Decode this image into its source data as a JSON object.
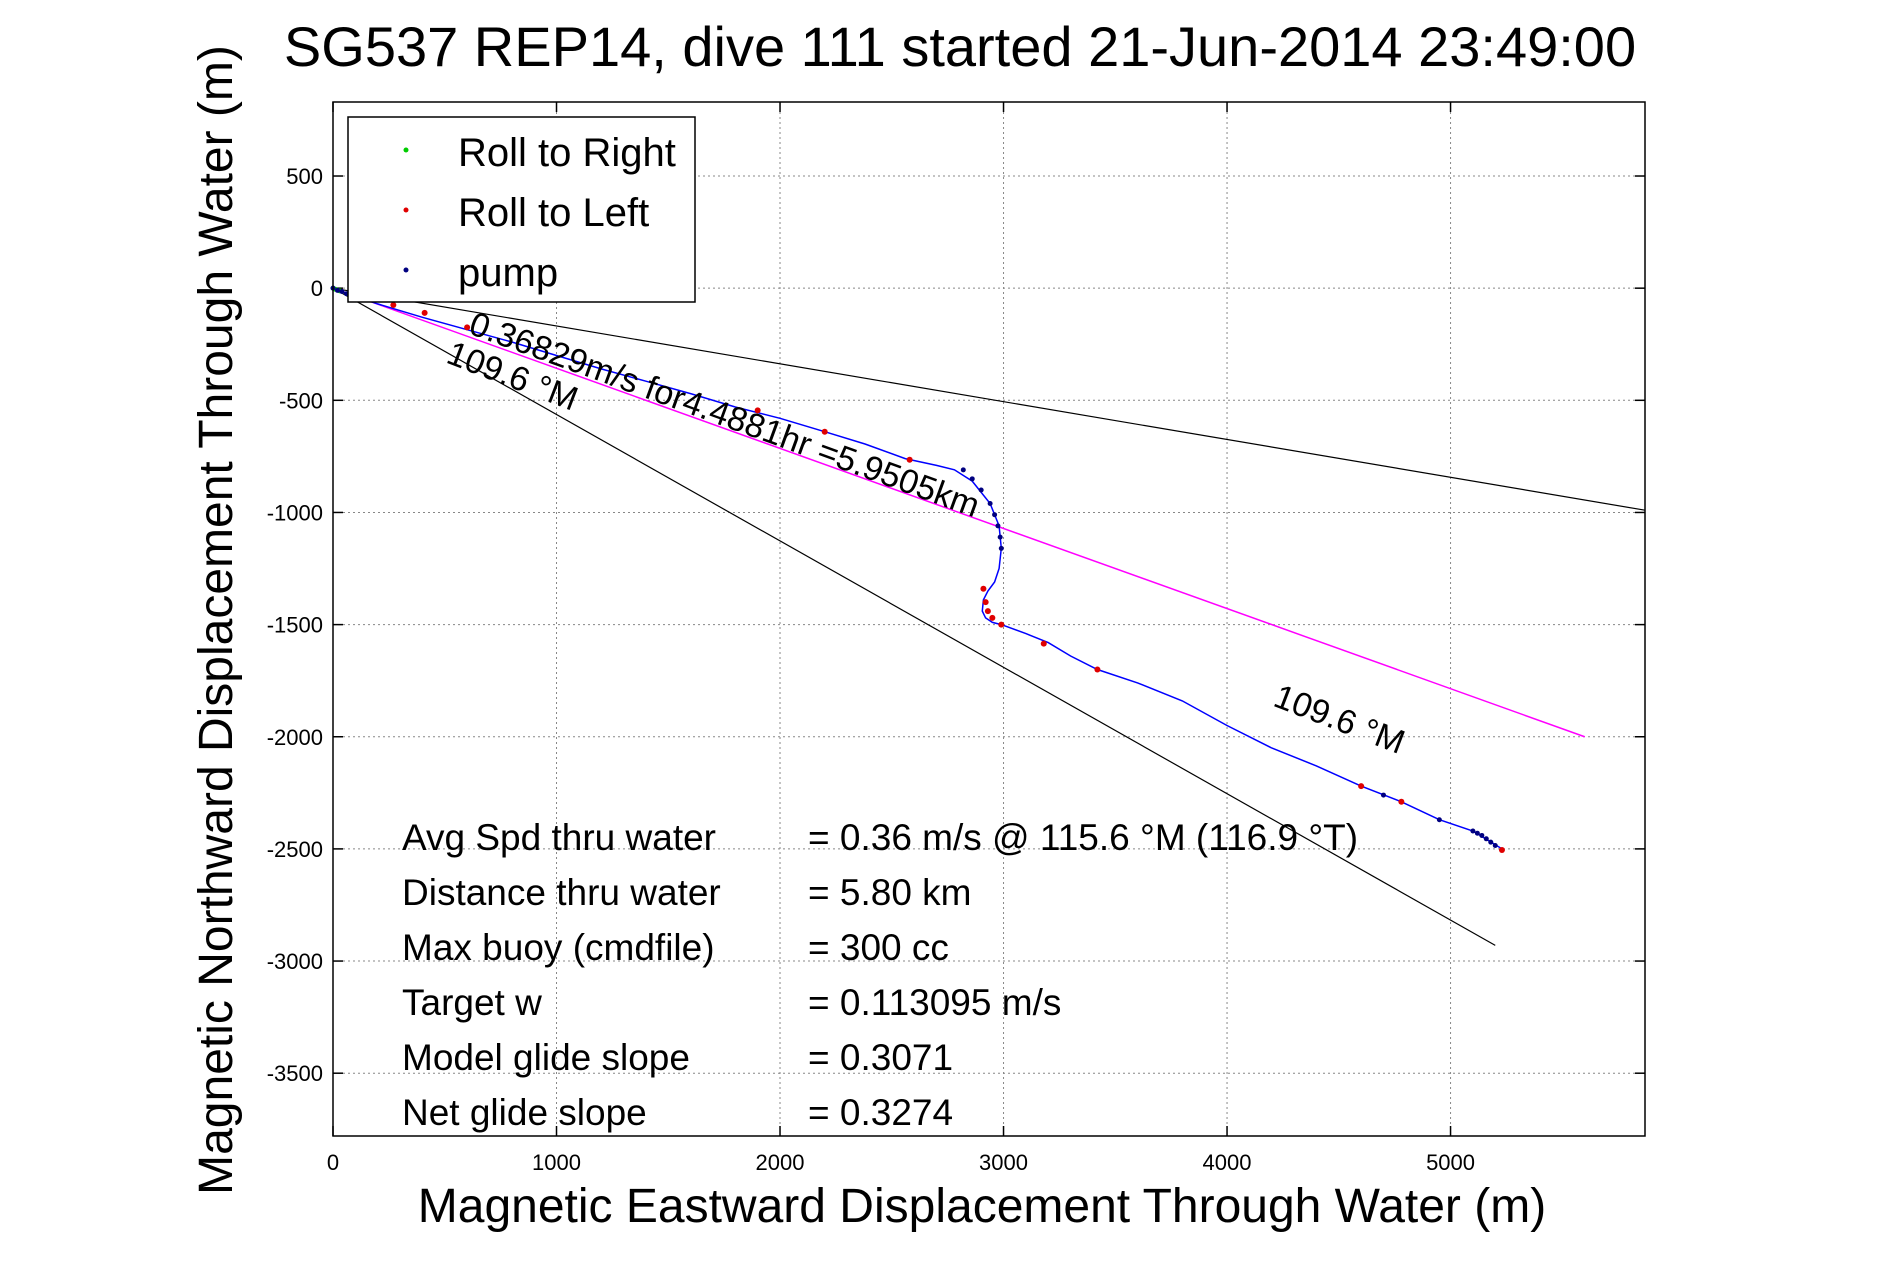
{
  "chart_data": {
    "type": "scatter",
    "title": "SG537 REP14, dive 111 started 21-Jun-2014 23:49:00",
    "xlabel": "Magnetic Eastward Displacement Through Water (m)",
    "ylabel": "Magnetic Northward Displacement Through Water (m)",
    "xlim": [
      0,
      5870
    ],
    "ylim": [
      -3780,
      830
    ],
    "xticks": [
      0,
      1000,
      2000,
      3000,
      4000,
      5000
    ],
    "yticks": [
      500,
      0,
      -500,
      -1000,
      -1500,
      -2000,
      -2500,
      -3000,
      -3500
    ],
    "grid": true,
    "legend_position": "top-left",
    "legend": [
      {
        "label": "Roll to Right",
        "color": "#00cc00"
      },
      {
        "label": "Roll to Left",
        "color": "#e00000"
      },
      {
        "label": "pump",
        "color": "#000080"
      }
    ],
    "colors": {
      "track": "#0000ff",
      "heading_line": "#ff00ff",
      "bounds": "#000000",
      "grid": "#888888"
    },
    "track": {
      "name": "",
      "x": [
        0,
        80,
        200,
        400,
        600,
        800,
        1000,
        1200,
        1400,
        1600,
        1800,
        2000,
        2200,
        2380,
        2560,
        2700,
        2780,
        2860,
        2940,
        2980,
        2990,
        2980,
        2960,
        2930,
        2910,
        2905,
        2920,
        2950,
        2990,
        3100,
        3200,
        3300,
        3420,
        3600,
        3800,
        4000,
        4200,
        4400,
        4600,
        4780,
        4950,
        5100,
        5230
      ],
      "y": [
        0,
        -30,
        -70,
        -130,
        -185,
        -240,
        -300,
        -360,
        -415,
        -470,
        -530,
        -580,
        -640,
        -695,
        -760,
        -790,
        -810,
        -860,
        -960,
        -1060,
        -1160,
        -1250,
        -1310,
        -1350,
        -1390,
        -1440,
        -1470,
        -1490,
        -1500,
        -1540,
        -1580,
        -1640,
        -1700,
        -1760,
        -1840,
        -1950,
        -2050,
        -2130,
        -2220,
        -2290,
        -2370,
        -2420,
        -2500
      ]
    },
    "heading_line": {
      "label": "0.36829m/s for4.4881hr =5.9505km",
      "x": [
        0,
        5600
      ],
      "y": [
        0,
        -2000
      ]
    },
    "bound_lines": [
      {
        "x": [
          0,
          5870
        ],
        "y": [
          0,
          -990
        ]
      },
      {
        "x": [
          0,
          5200
        ],
        "y": [
          0,
          -2930
        ]
      }
    ],
    "roll_left_points": {
      "x": [
        270,
        410,
        600,
        1900,
        2200,
        2580,
        2910,
        2920,
        2930,
        2950,
        2990,
        3180,
        3420,
        4600,
        4780,
        5230
      ],
      "y": [
        -75,
        -110,
        -175,
        -545,
        -640,
        -765,
        -1340,
        -1400,
        -1440,
        -1470,
        -1500,
        -1585,
        -1700,
        -2220,
        -2290,
        -2505
      ]
    },
    "pump_points": {
      "x": [
        0,
        20,
        40,
        60,
        2820,
        2860,
        2900,
        2940,
        2960,
        2975,
        2985,
        2990,
        4700,
        4950,
        5100,
        5120,
        5140,
        5160,
        5180,
        5200
      ],
      "y": [
        0,
        -10,
        -15,
        -25,
        -810,
        -850,
        -900,
        -960,
        -1010,
        -1060,
        -1110,
        -1160,
        -2260,
        -2370,
        -2420,
        -2430,
        -2440,
        -2455,
        -2470,
        -2485
      ]
    },
    "roll_right_points": {
      "x": [
        0,
        10,
        30
      ],
      "y": [
        0,
        -5,
        -12
      ]
    },
    "annotations": [
      {
        "text": "109.6 °M",
        "x": 500,
        "y": -330,
        "angle": 21
      },
      {
        "text": "109.6 °M",
        "x": 4200,
        "y": -1860,
        "angle": 21
      },
      {
        "text": "0.36829m/s for4.4881hr =5.9505km",
        "x": 600,
        "y": -200,
        "angle": 20
      }
    ],
    "stats": [
      {
        "label": "Avg Spd thru water",
        "value": "=  0.36 m/s @ 115.6 °M (116.9 °T)"
      },
      {
        "label": "Distance thru water",
        "value": "=  5.80 km"
      },
      {
        "label": "Max buoy (cmdfile)",
        "value": "= 300 cc"
      },
      {
        "label": "Target w",
        "value": "= 0.113095 m/s"
      },
      {
        "label": "Model glide slope",
        "value": "= 0.3071"
      },
      {
        "label": "Net glide slope",
        "value": "= 0.3274"
      }
    ]
  }
}
